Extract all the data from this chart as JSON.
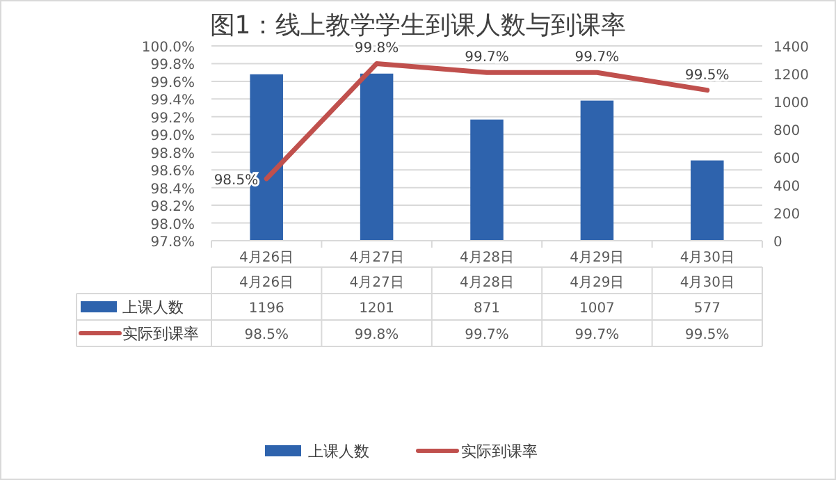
{
  "chart_data": {
    "type": "bar",
    "title": "图1：线上教学学生到课人数与到课率",
    "categories": [
      "4月26日",
      "4月27日",
      "4月28日",
      "4月29日",
      "4月30日"
    ],
    "series": [
      {
        "name": "上课人数",
        "axis": "y2",
        "color": "#2e63ad",
        "values": [
          1196,
          1201,
          871,
          1007,
          577
        ],
        "value_labels": [
          "1196",
          "1201",
          "871",
          "1007",
          "577"
        ]
      },
      {
        "name": "实际到课率",
        "type": "line",
        "axis": "y",
        "color": "#c0504d",
        "values": [
          98.5,
          99.8,
          99.7,
          99.7,
          99.5
        ],
        "value_labels": [
          "98.5%",
          "99.8%",
          "99.7%",
          "99.7%",
          "99.5%"
        ]
      }
    ],
    "ylim": [
      97.8,
      100
    ],
    "yticks": [
      {
        "value": 97.8,
        "label": "97.8%"
      },
      {
        "value": 98,
        "label": "98.0%"
      },
      {
        "value": 98.2,
        "label": "98.2%"
      },
      {
        "value": 98.4,
        "label": "98.4%"
      },
      {
        "value": 98.6,
        "label": "98.6%"
      },
      {
        "value": 98.8,
        "label": "98.8%"
      },
      {
        "value": 99,
        "label": "99.0%"
      },
      {
        "value": 99.2,
        "label": "99.2%"
      },
      {
        "value": 99.4,
        "label": "99.4%"
      },
      {
        "value": 99.6,
        "label": "99.6%"
      },
      {
        "value": 99.8,
        "label": "99.8%"
      },
      {
        "value": 100,
        "label": "100.0%"
      }
    ],
    "y2lim": [
      0,
      1400
    ],
    "y2ticks": [
      0,
      200,
      400,
      600,
      800,
      1000,
      1200,
      1400
    ],
    "grid": "y",
    "legend": "bottom",
    "marker": "none",
    "line_style": "solid"
  }
}
